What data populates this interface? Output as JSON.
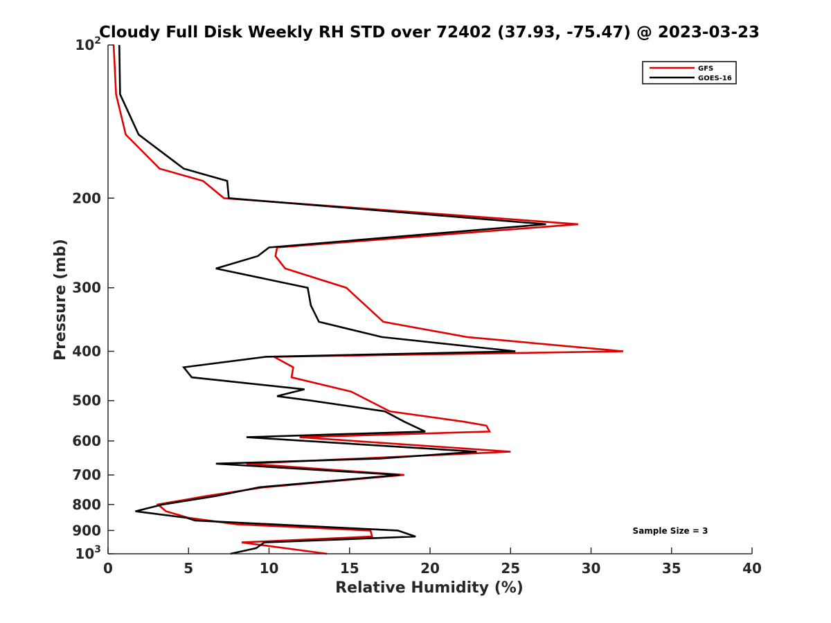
{
  "chart_data": {
    "type": "line",
    "title": "Cloudy Full Disk Weekly RH STD over 72402 (37.93, -75.47) @ 2023-03-23",
    "xlabel": "Relative Humidity (%)",
    "ylabel": "Pressure (mb)",
    "xlim": [
      0,
      40
    ],
    "ylim": [
      100,
      1000
    ],
    "y_scale": "log",
    "y_reversed": true,
    "x_ticks": [
      0,
      5,
      10,
      15,
      20,
      25,
      30,
      35,
      40
    ],
    "x_tick_labels": [
      "0",
      "5",
      "10",
      "15",
      "20",
      "25",
      "30",
      "35",
      "40"
    ],
    "y_ticks": [
      100,
      200,
      300,
      400,
      500,
      600,
      700,
      800,
      900,
      1000
    ],
    "y_tick_labels": [
      "10^2",
      "200",
      "300",
      "400",
      "500",
      "600",
      "700",
      "800",
      "900",
      "10^3"
    ],
    "legend_position": "top-right",
    "annotation": "Sample Size = 3",
    "series": [
      {
        "name": "GFS",
        "color": "#e00000",
        "points": [
          [
            0.35,
            100
          ],
          [
            0.5,
            125
          ],
          [
            1.1,
            150
          ],
          [
            3.2,
            175
          ],
          [
            5.9,
            185
          ],
          [
            7.2,
            200
          ],
          [
            29.2,
            225
          ],
          [
            10.5,
            250
          ],
          [
            10.4,
            260
          ],
          [
            11.0,
            275
          ],
          [
            14.8,
            300
          ],
          [
            17.1,
            350
          ],
          [
            22.3,
            375
          ],
          [
            32.0,
            400
          ],
          [
            10.3,
            410
          ],
          [
            11.5,
            430
          ],
          [
            11.4,
            450
          ],
          [
            15.1,
            480
          ],
          [
            17.5,
            525
          ],
          [
            22.1,
            550
          ],
          [
            23.5,
            560
          ],
          [
            23.7,
            575
          ],
          [
            11.9,
            590
          ],
          [
            25.0,
            630
          ],
          [
            8.6,
            665
          ],
          [
            18.4,
            700
          ],
          [
            9.7,
            740
          ],
          [
            6.1,
            770
          ],
          [
            3.1,
            800
          ],
          [
            3.6,
            825
          ],
          [
            5.0,
            850
          ],
          [
            8.0,
            875
          ],
          [
            16.3,
            900
          ],
          [
            16.4,
            925
          ],
          [
            8.3,
            950
          ],
          [
            13.6,
            1000
          ]
        ]
      },
      {
        "name": "GOES-16",
        "color": "#000000",
        "points": [
          [
            0.7,
            100
          ],
          [
            0.75,
            125
          ],
          [
            1.9,
            150
          ],
          [
            4.7,
            175
          ],
          [
            7.4,
            185
          ],
          [
            7.5,
            200
          ],
          [
            27.2,
            225
          ],
          [
            10.0,
            250
          ],
          [
            9.3,
            260
          ],
          [
            6.7,
            275
          ],
          [
            12.4,
            300
          ],
          [
            12.6,
            325
          ],
          [
            13.1,
            350
          ],
          [
            17.0,
            375
          ],
          [
            25.3,
            400
          ],
          [
            9.8,
            410
          ],
          [
            4.7,
            430
          ],
          [
            5.2,
            450
          ],
          [
            12.2,
            475
          ],
          [
            10.5,
            490
          ],
          [
            12.6,
            500
          ],
          [
            17.2,
            525
          ],
          [
            18.4,
            550
          ],
          [
            19.7,
            575
          ],
          [
            8.6,
            590
          ],
          [
            22.9,
            630
          ],
          [
            16.9,
            650
          ],
          [
            6.7,
            665
          ],
          [
            18.1,
            700
          ],
          [
            9.4,
            740
          ],
          [
            6.7,
            770
          ],
          [
            3.4,
            800
          ],
          [
            1.7,
            825
          ],
          [
            4.9,
            850
          ],
          [
            5.4,
            860
          ],
          [
            18.0,
            900
          ],
          [
            19.1,
            925
          ],
          [
            9.7,
            950
          ],
          [
            9.2,
            975
          ],
          [
            7.6,
            1000
          ]
        ]
      }
    ]
  }
}
